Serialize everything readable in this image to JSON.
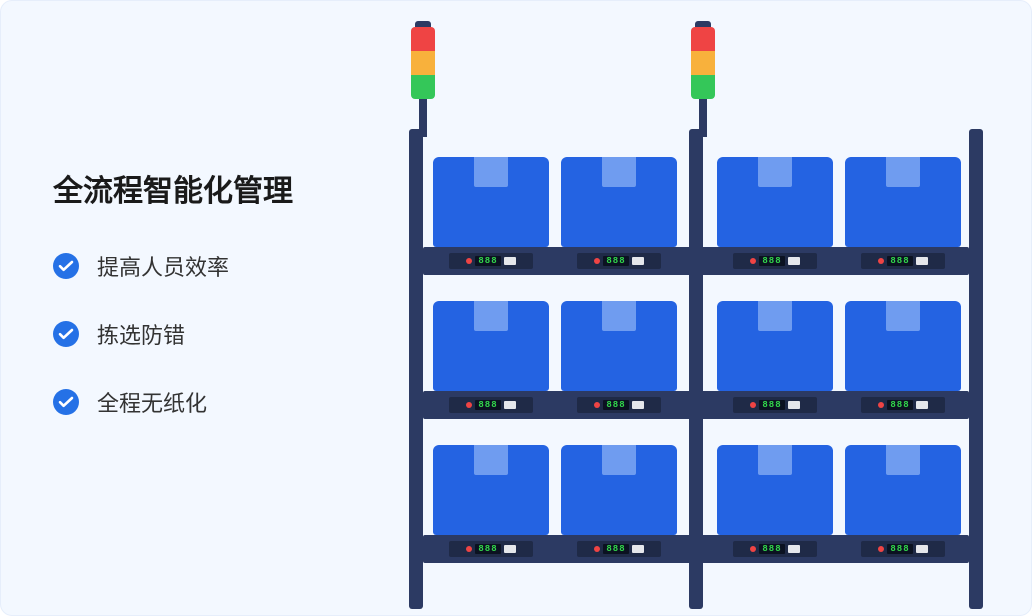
{
  "heading": "全流程智能化管理",
  "bullets": [
    {
      "label": "提高人员效率"
    },
    {
      "label": "拣选防错"
    },
    {
      "label": "全程无纸化"
    }
  ],
  "colors": {
    "card_bg": "#f3f8ff",
    "card_border": "#e6eefb",
    "heading_text": "#1a1a1a",
    "bullet_text": "#333333",
    "check_bg": "#2571e6",
    "check_mark": "#ffffff"
  },
  "illustration": {
    "type": "infographic",
    "rack": {
      "posts": 3,
      "shelves": 3,
      "columns_per_bay": 2,
      "bays": 2,
      "post_color": "#2c3a63",
      "shelf_color": "#2c3a63"
    },
    "box": {
      "fill": "#2463e2",
      "tape": "#6f9cf0",
      "count_per_shelf": 4,
      "x_positions": [
        24,
        152,
        308,
        436
      ],
      "y_positions": [
        28,
        172,
        316
      ]
    },
    "display_module": {
      "base": "#1f2a47",
      "led_red": "#ef4444",
      "digits": "888",
      "digit_color": "#32d74b",
      "digit_bg": "#0b1221",
      "button": "#e5e7eb",
      "x_positions": [
        40,
        168,
        324,
        452
      ],
      "y_positions": [
        124,
        268,
        412
      ]
    },
    "signal_tower": {
      "count": 2,
      "cap": "#2c3a63",
      "red": "#ef4444",
      "orange": "#f8b13c",
      "green": "#34c759",
      "pole": "#2c3a63"
    }
  }
}
